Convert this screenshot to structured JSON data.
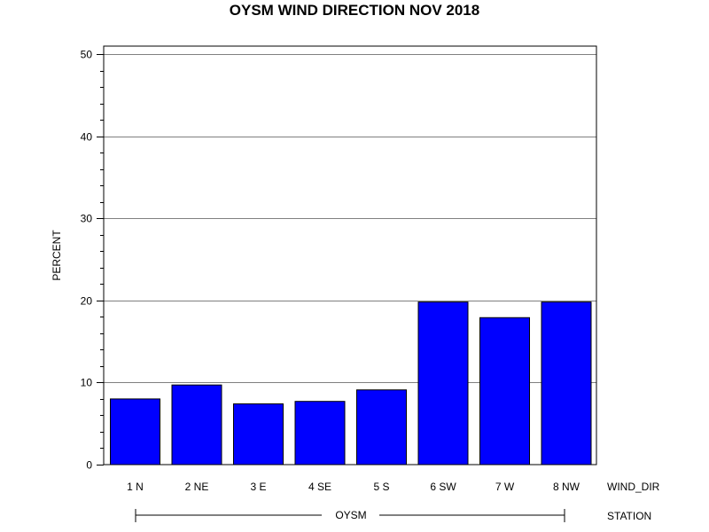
{
  "chart_data": {
    "type": "bar",
    "title": "OYSM WIND DIRECTION NOV 2018",
    "ylabel": "PERCENT",
    "xlabel": "WIND_DIR",
    "group_label": "STATION",
    "group_value": "OYSM",
    "categories": [
      "1 N",
      "2 NE",
      "3 E",
      "4 SE",
      "5 S",
      "6 SW",
      "7 W",
      "8 NW"
    ],
    "values": [
      8.0,
      9.7,
      7.4,
      7.7,
      9.1,
      19.8,
      17.9,
      19.8
    ],
    "ylim": [
      0,
      50
    ],
    "yticks": [
      0,
      10,
      20,
      30,
      40,
      50
    ],
    "grid": true,
    "bar_color": "#0000ff",
    "bar_edge_color": "#000000",
    "grid_color": "#808080"
  }
}
